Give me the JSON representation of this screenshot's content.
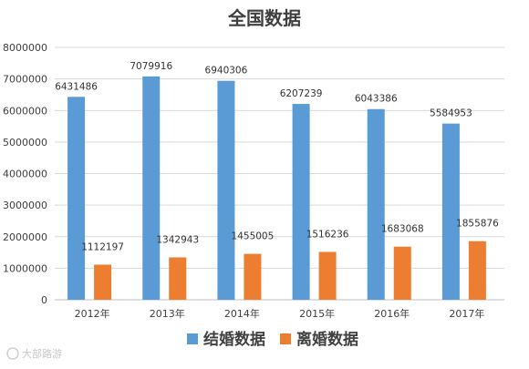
{
  "chart_data": {
    "type": "bar",
    "title": "全国数据",
    "categories": [
      "2012年",
      "2013年",
      "2014年",
      "2015年",
      "2016年",
      "2017年"
    ],
    "series": [
      {
        "name": "结婚数据",
        "color": "#5b9bd5",
        "values": [
          6431486,
          7079916,
          6940306,
          6207239,
          6043386,
          5584953
        ]
      },
      {
        "name": "离婚数据",
        "color": "#ed7d31",
        "values": [
          1112197,
          1342943,
          1455005,
          1516236,
          1683068,
          1855876
        ]
      }
    ],
    "ylim": [
      0,
      8000000
    ],
    "yticks": [
      "0",
      "1000000",
      "2000000",
      "3000000",
      "4000000",
      "5000000",
      "6000000",
      "7000000",
      "8000000"
    ],
    "grid": true,
    "legend_position": "bottom",
    "data_labels": true
  },
  "watermark": "大部路游"
}
